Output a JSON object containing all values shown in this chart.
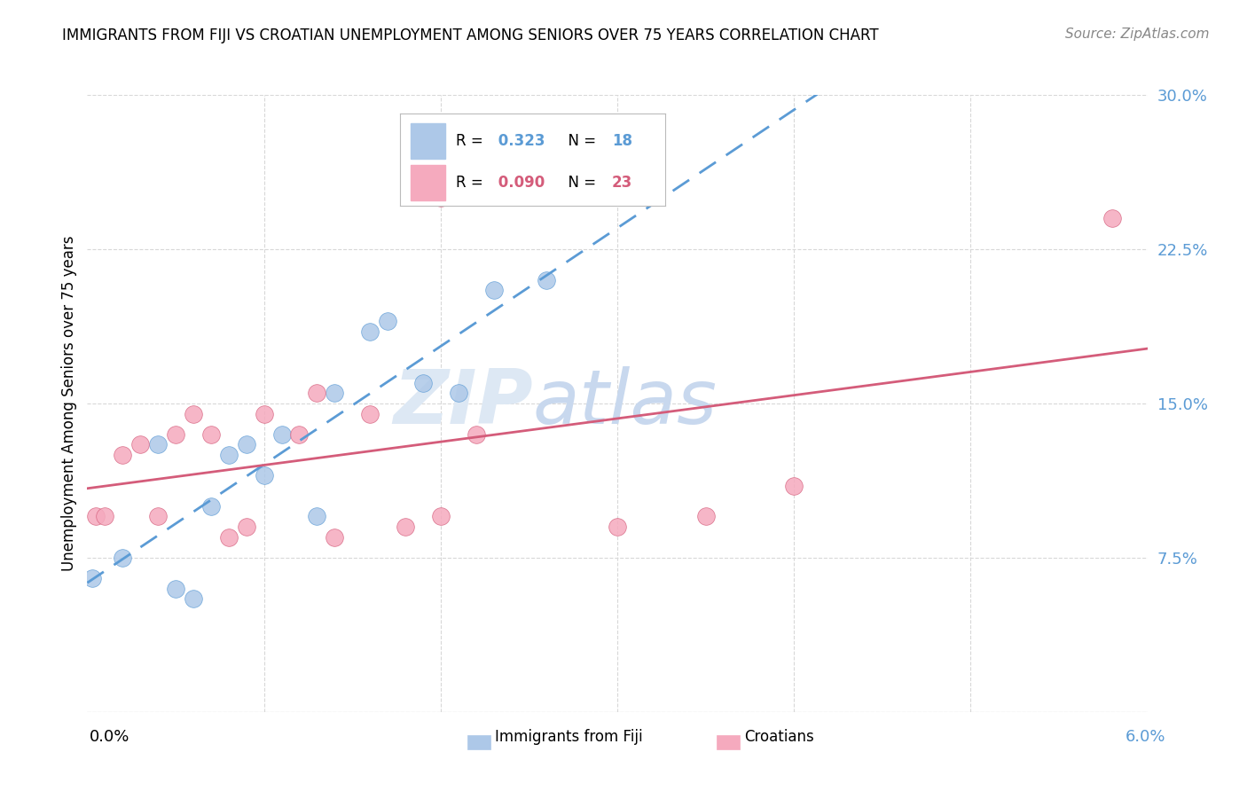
{
  "title": "IMMIGRANTS FROM FIJI VS CROATIAN UNEMPLOYMENT AMONG SENIORS OVER 75 YEARS CORRELATION CHART",
  "source": "Source: ZipAtlas.com",
  "ylabel": "Unemployment Among Seniors over 75 years",
  "xmin": 0.0,
  "xmax": 0.06,
  "ymin": 0.0,
  "ymax": 0.3,
  "yticks": [
    0.0,
    0.075,
    0.15,
    0.225,
    0.3
  ],
  "ytick_labels": [
    "",
    "7.5%",
    "15.0%",
    "22.5%",
    "30.0%"
  ],
  "fiji_R": 0.323,
  "fiji_N": 18,
  "croatian_R": 0.09,
  "croatian_N": 23,
  "fiji_color": "#adc8e8",
  "croatian_color": "#f5aabe",
  "fiji_line_color": "#5b9bd5",
  "croatian_line_color": "#d45c7a",
  "fiji_scatter_x": [
    0.0003,
    0.002,
    0.004,
    0.005,
    0.006,
    0.007,
    0.008,
    0.009,
    0.01,
    0.011,
    0.013,
    0.014,
    0.016,
    0.017,
    0.019,
    0.021,
    0.023,
    0.026
  ],
  "fiji_scatter_y": [
    0.065,
    0.075,
    0.13,
    0.06,
    0.055,
    0.1,
    0.125,
    0.13,
    0.115,
    0.135,
    0.095,
    0.155,
    0.185,
    0.19,
    0.16,
    0.155,
    0.205,
    0.21
  ],
  "croatian_scatter_x": [
    0.0005,
    0.001,
    0.002,
    0.003,
    0.004,
    0.005,
    0.006,
    0.007,
    0.008,
    0.009,
    0.01,
    0.012,
    0.013,
    0.014,
    0.016,
    0.018,
    0.02,
    0.022,
    0.03,
    0.035,
    0.04,
    0.058,
    0.02
  ],
  "croatian_scatter_y": [
    0.095,
    0.095,
    0.125,
    0.13,
    0.095,
    0.135,
    0.145,
    0.135,
    0.085,
    0.09,
    0.145,
    0.135,
    0.155,
    0.085,
    0.145,
    0.09,
    0.095,
    0.135,
    0.09,
    0.095,
    0.11,
    0.24,
    0.25
  ],
  "watermark_zip": "ZIP",
  "watermark_atlas": "atlas",
  "background_color": "#ffffff",
  "grid_color": "#d8d8d8"
}
